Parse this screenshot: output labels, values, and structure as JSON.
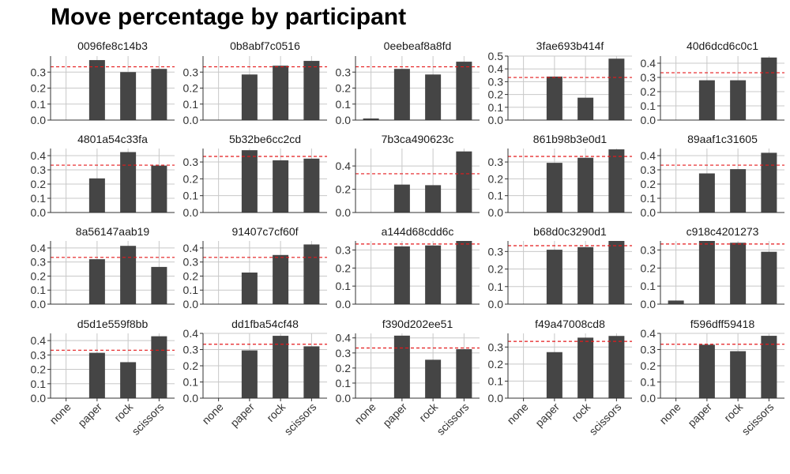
{
  "chart_data": {
    "type": "bar",
    "title": "Move percentage by participant",
    "categories": [
      "none",
      "paper",
      "rock",
      "scissors"
    ],
    "reference_line": 0.333,
    "colors": {
      "bar": "#454545",
      "reference": "#e41a1c",
      "grid": "#c8c8c8",
      "axis": "#333333",
      "text": "#333333"
    },
    "grid": true,
    "facets": [
      {
        "name": "0096fe8c14b3",
        "ylim": [
          0,
          0.4
        ],
        "ticks": [
          "0.0",
          "0.1",
          "0.2",
          "0.3"
        ],
        "values": [
          0,
          0.375,
          0.3,
          0.32
        ]
      },
      {
        "name": "0b8abf7c0516",
        "ylim": [
          0,
          0.4
        ],
        "ticks": [
          "0.0",
          "0.1",
          "0.2",
          "0.3"
        ],
        "values": [
          0,
          0.285,
          0.34,
          0.37
        ]
      },
      {
        "name": "0eebeaf8a8fd",
        "ylim": [
          0,
          0.4
        ],
        "ticks": [
          "0.0",
          "0.1",
          "0.2",
          "0.3"
        ],
        "values": [
          0.01,
          0.32,
          0.285,
          0.365
        ]
      },
      {
        "name": "3fae693b414f",
        "ylim": [
          0,
          0.5
        ],
        "ticks": [
          "0.0",
          "0.1",
          "0.2",
          "0.3",
          "0.4",
          "0.5"
        ],
        "values": [
          0,
          0.34,
          0.175,
          0.48
        ]
      },
      {
        "name": "40d6dcd6c0c1",
        "ylim": [
          0,
          0.45
        ],
        "ticks": [
          "0.0",
          "0.1",
          "0.2",
          "0.3",
          "0.4"
        ],
        "values": [
          0,
          0.28,
          0.28,
          0.44
        ]
      },
      {
        "name": "4801a54c33fa",
        "ylim": [
          0,
          0.45
        ],
        "ticks": [
          "0.0",
          "0.1",
          "0.2",
          "0.3",
          "0.4"
        ],
        "values": [
          0,
          0.24,
          0.425,
          0.33
        ]
      },
      {
        "name": "5b32be6cc2cd",
        "ylim": [
          0,
          0.38
        ],
        "ticks": [
          "0.0",
          "0.1",
          "0.2",
          "0.3"
        ],
        "values": [
          0,
          0.37,
          0.31,
          0.32
        ]
      },
      {
        "name": "7b3ca490623c",
        "ylim": [
          0,
          0.55
        ],
        "ticks": [
          "0.0",
          "0.2",
          "0.4"
        ],
        "values": [
          0,
          0.24,
          0.235,
          0.525
        ]
      },
      {
        "name": "861b98b3e0d1",
        "ylim": [
          0,
          0.38
        ],
        "ticks": [
          "0.0",
          "0.1",
          "0.2",
          "0.3"
        ],
        "values": [
          0,
          0.295,
          0.325,
          0.375
        ]
      },
      {
        "name": "89aaf1c31605",
        "ylim": [
          0,
          0.45
        ],
        "ticks": [
          "0.0",
          "0.1",
          "0.2",
          "0.3",
          "0.4"
        ],
        "values": [
          0,
          0.275,
          0.305,
          0.42
        ]
      },
      {
        "name": "8a56147aab19",
        "ylim": [
          0,
          0.45
        ],
        "ticks": [
          "0.0",
          "0.1",
          "0.2",
          "0.3",
          "0.4"
        ],
        "values": [
          0,
          0.32,
          0.415,
          0.265
        ]
      },
      {
        "name": "91407c7cf60f",
        "ylim": [
          0,
          0.45
        ],
        "ticks": [
          "0.0",
          "0.1",
          "0.2",
          "0.3",
          "0.4"
        ],
        "values": [
          0,
          0.225,
          0.35,
          0.425
        ]
      },
      {
        "name": "a144d68cdd6c",
        "ylim": [
          0,
          0.35
        ],
        "ticks": [
          "0.0",
          "0.1",
          "0.2",
          "0.3"
        ],
        "values": [
          0,
          0.32,
          0.325,
          0.35
        ]
      },
      {
        "name": "b68d0c3290d1",
        "ylim": [
          0,
          0.36
        ],
        "ticks": [
          "0.0",
          "0.1",
          "0.2",
          "0.3"
        ],
        "values": [
          0,
          0.31,
          0.325,
          0.36
        ]
      },
      {
        "name": "c918c4201273",
        "ylim": [
          0,
          0.35
        ],
        "ticks": [
          "0.0",
          "0.1",
          "0.2",
          "0.3"
        ],
        "values": [
          0.02,
          0.35,
          0.34,
          0.29
        ]
      },
      {
        "name": "d5d1e559f8bb",
        "ylim": [
          0,
          0.45
        ],
        "ticks": [
          "0.0",
          "0.1",
          "0.2",
          "0.3",
          "0.4"
        ],
        "values": [
          0,
          0.315,
          0.25,
          0.43
        ]
      },
      {
        "name": "dd1fba54cf48",
        "ylim": [
          0,
          0.4
        ],
        "ticks": [
          "0.0",
          "0.1",
          "0.2",
          "0.3",
          "0.4"
        ],
        "values": [
          0,
          0.295,
          0.385,
          0.32
        ]
      },
      {
        "name": "f390d202ee51",
        "ylim": [
          0,
          0.43
        ],
        "ticks": [
          "0.0",
          "0.1",
          "0.2",
          "0.3",
          "0.4"
        ],
        "values": [
          0,
          0.415,
          0.255,
          0.325
        ]
      },
      {
        "name": "f49a47008cd8",
        "ylim": [
          0,
          0.38
        ],
        "ticks": [
          "0.0",
          "0.1",
          "0.2",
          "0.3"
        ],
        "values": [
          0,
          0.27,
          0.355,
          0.365
        ]
      },
      {
        "name": "f596dff59418",
        "ylim": [
          0,
          0.4
        ],
        "ticks": [
          "0.0",
          "0.1",
          "0.2",
          "0.3",
          "0.4"
        ],
        "values": [
          0,
          0.33,
          0.29,
          0.385
        ]
      }
    ]
  }
}
